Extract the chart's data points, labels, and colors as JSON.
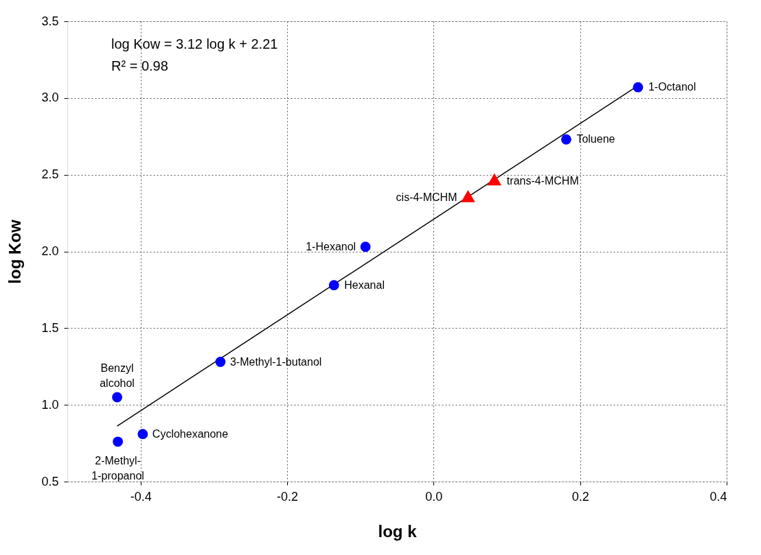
{
  "chart_data": {
    "type": "scatter",
    "xlabel": "log k",
    "ylabel": "log Kow",
    "xlim": [
      -0.5,
      0.4
    ],
    "ylim": [
      0.5,
      3.5
    ],
    "xticks": [
      {
        "value": -0.4,
        "label": "-0.4"
      },
      {
        "value": -0.2,
        "label": "-0.2"
      },
      {
        "value": 0,
        "label": "0.0"
      },
      {
        "value": 0.2,
        "label": "0.2"
      },
      {
        "value": 0.4,
        "label": "0.4"
      }
    ],
    "yticks": [
      {
        "value": 0.5,
        "label": "0.5"
      },
      {
        "value": 1.0,
        "label": "1.0"
      },
      {
        "value": 1.5,
        "label": "1.5"
      },
      {
        "value": 2.0,
        "label": "2.0"
      },
      {
        "value": 2.5,
        "label": "2.5"
      },
      {
        "value": 3.0,
        "label": "3.0"
      },
      {
        "value": 3.5,
        "label": "3.5"
      }
    ],
    "grid": true,
    "legend": false,
    "series": [
      {
        "type": "line",
        "color": "#000000",
        "marker": "none",
        "x": [
          -0.432,
          0.279
        ],
        "values": [
          0.862,
          3.08
        ]
      },
      {
        "type": "scatter",
        "color": "#0000ff",
        "marker": "circle",
        "x": [
          0.279,
          0.181,
          -0.093,
          -0.136,
          -0.291,
          -0.432,
          -0.397,
          -0.431
        ],
        "values": [
          3.07,
          2.73,
          2.03,
          1.78,
          1.28,
          1.05,
          0.81,
          0.76
        ]
      },
      {
        "type": "scatter",
        "color": "#ff0000",
        "marker": "triangle",
        "x": [
          0.083,
          0.047
        ],
        "values": [
          2.47,
          2.36
        ]
      }
    ],
    "annotations": [
      "log Kow = 3.12 log k + 2.21",
      "R² = 0.98",
      {
        "text": "1-Octanol",
        "x": 0.279,
        "y": 3.07
      },
      {
        "text": "Toluene",
        "x": 0.181,
        "y": 2.73
      },
      {
        "text": "trans-4-MCHM",
        "x": 0.083,
        "y": 2.47
      },
      {
        "text": "cis-4-MCHM",
        "x": 0.047,
        "y": 2.36
      },
      {
        "text": "1-Hexanol",
        "x": -0.093,
        "y": 2.03
      },
      {
        "text": "Hexanal",
        "x": -0.136,
        "y": 1.78
      },
      {
        "text": "3-Methyl-1-butanol",
        "x": -0.291,
        "y": 1.28
      },
      {
        "text": "Benzyl\nalcohol",
        "x": -0.432,
        "y": 1.05
      },
      {
        "text": "Cyclohexanone",
        "x": -0.397,
        "y": 0.81
      },
      {
        "text": "2-Methyl-\n1-propanol",
        "x": -0.431,
        "y": 0.76
      }
    ]
  }
}
